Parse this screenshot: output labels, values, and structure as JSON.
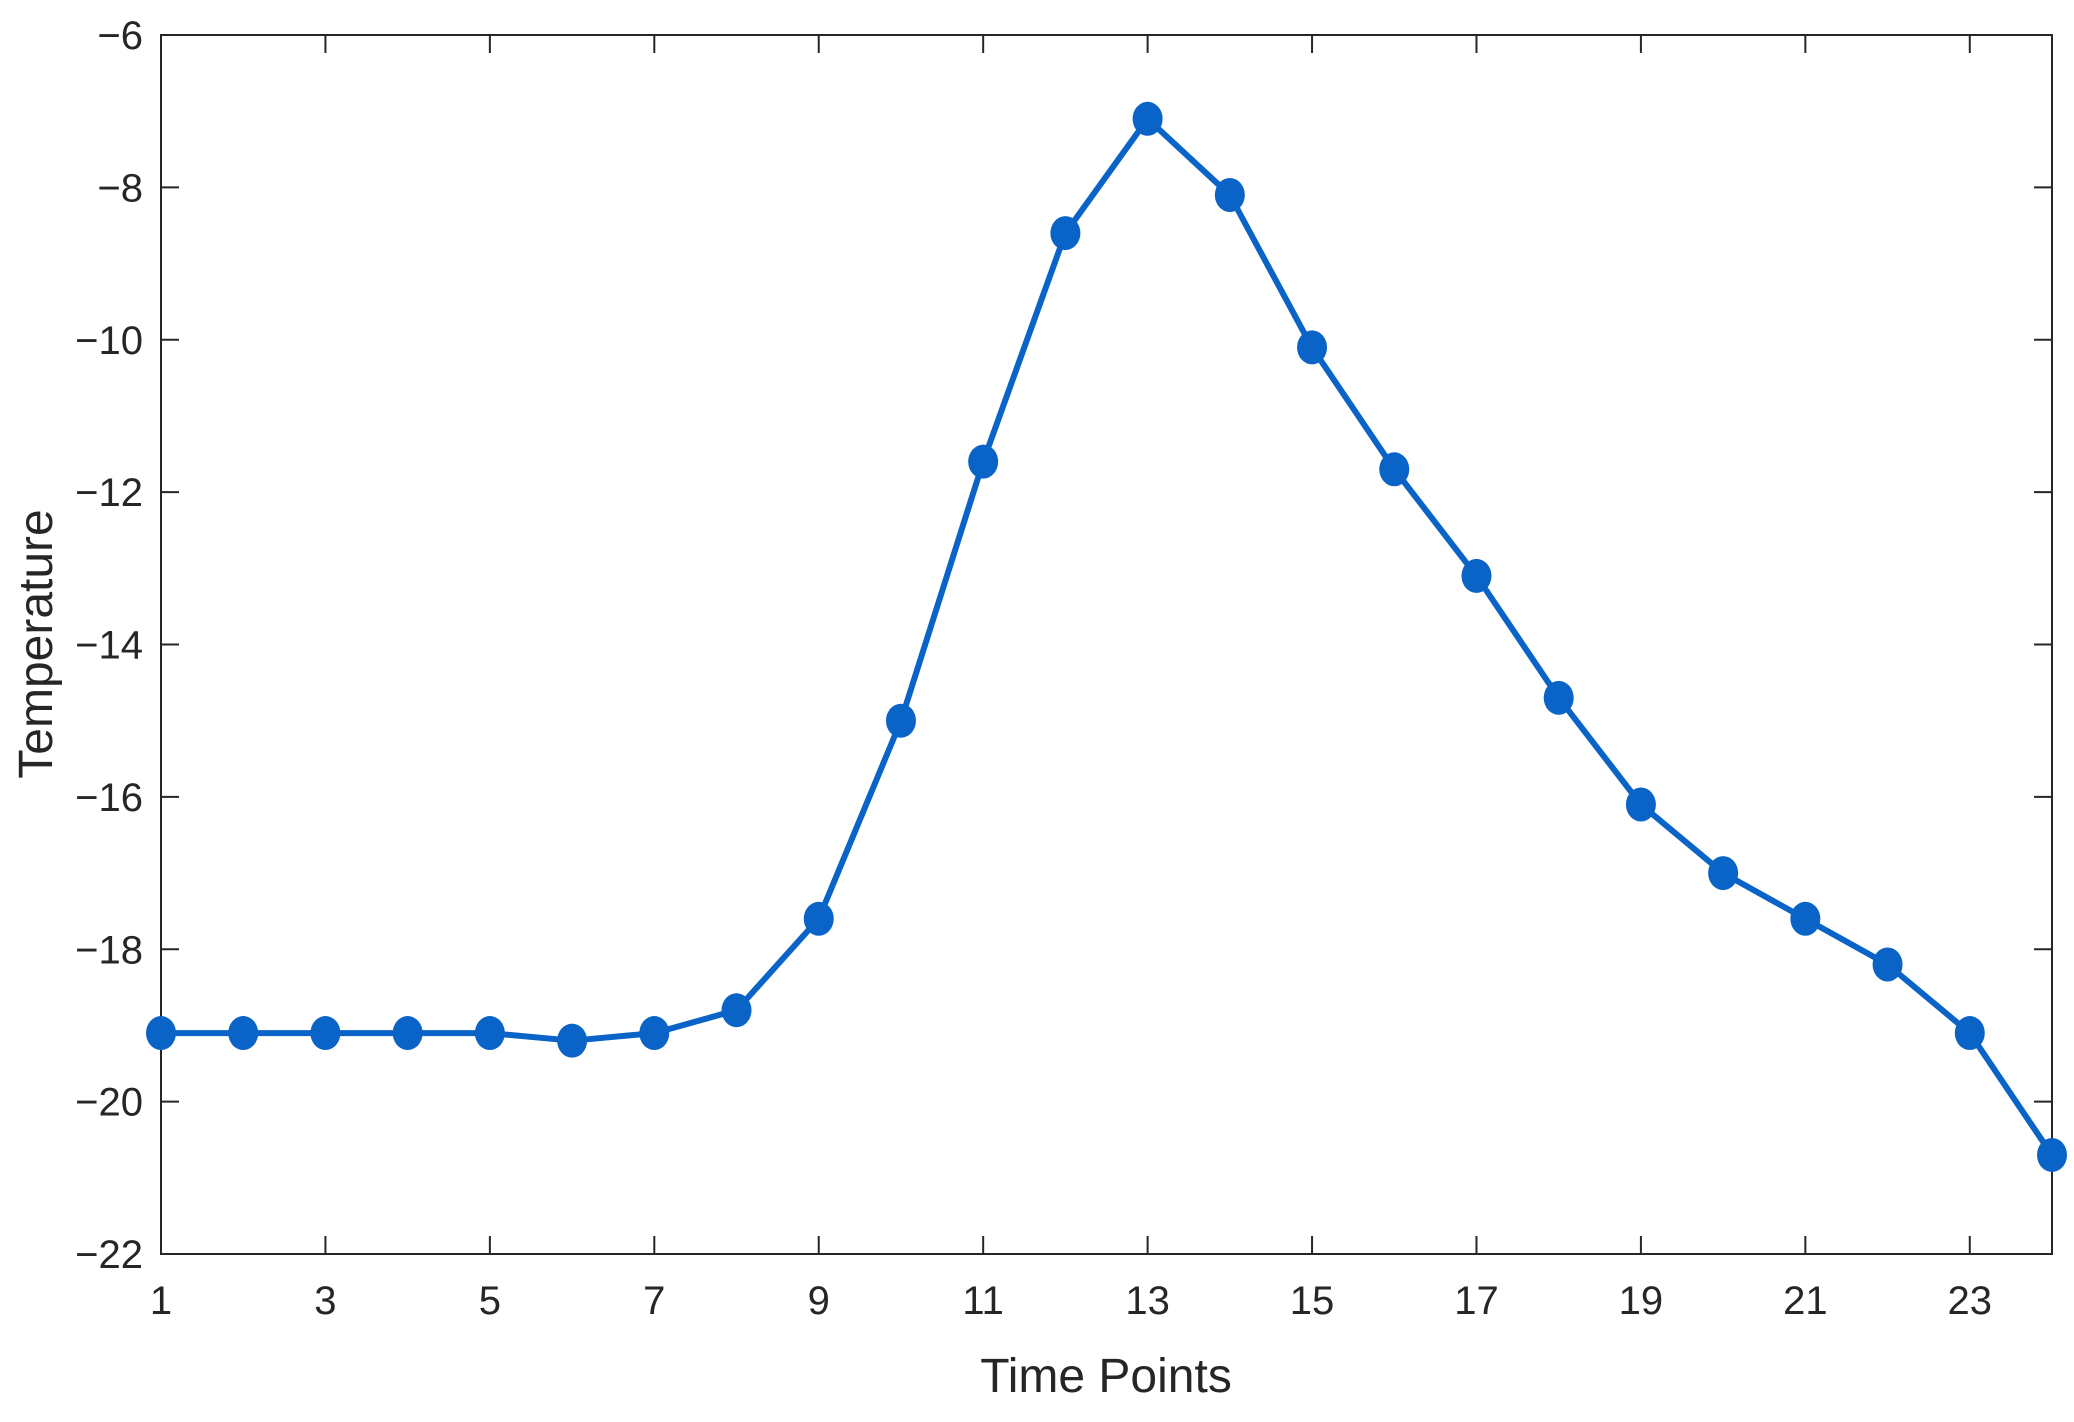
{
  "chart_data": {
    "type": "line",
    "title": "",
    "xlabel": "Time Points",
    "ylabel": "Temperature",
    "xlim": [
      1,
      24
    ],
    "ylim": [
      -22,
      -6
    ],
    "xticks": [
      1,
      3,
      5,
      7,
      9,
      11,
      13,
      15,
      17,
      19,
      21,
      23
    ],
    "xtick_labels": [
      "1",
      "3",
      "5",
      "7",
      "9",
      "11",
      "13",
      "15",
      "17",
      "19",
      "21",
      "23"
    ],
    "yticks": [
      -22,
      -20,
      -18,
      -16,
      -14,
      -12,
      -10,
      -8,
      -6
    ],
    "ytick_labels": [
      "−22",
      "−20",
      "−18",
      "−16",
      "−14",
      "−12",
      "−10",
      "−8",
      "−6"
    ],
    "grid": false,
    "series": [
      {
        "color": "#0A64C8",
        "marker": "circle",
        "x": [
          1,
          2,
          3,
          4,
          5,
          6,
          7,
          8,
          9,
          10,
          11,
          12,
          13,
          14,
          15,
          16,
          17,
          18,
          19,
          20,
          21,
          22,
          23,
          24
        ],
        "values": [
          -19.1,
          -19.1,
          -19.1,
          -19.1,
          -19.1,
          -19.2,
          -19.1,
          -18.8,
          -17.6,
          -15.0,
          -11.6,
          -8.6,
          -7.1,
          -8.1,
          -10.1,
          -11.7,
          -13.1,
          -14.7,
          -16.1,
          -17.0,
          -17.6,
          -18.2,
          -19.1,
          -20.7
        ]
      }
    ]
  }
}
